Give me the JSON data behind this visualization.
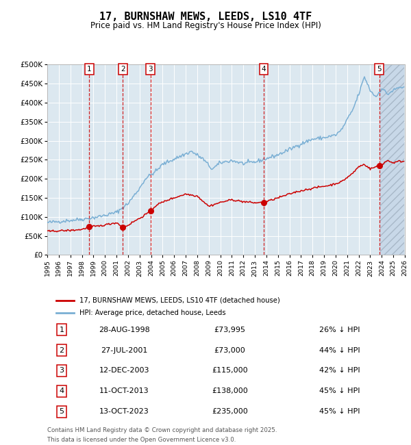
{
  "title": "17, BURNSHAW MEWS, LEEDS, LS10 4TF",
  "subtitle": "Price paid vs. HM Land Registry's House Price Index (HPI)",
  "hpi_label": "HPI: Average price, detached house, Leeds",
  "price_label": "17, BURNSHAW MEWS, LEEDS, LS10 4TF (detached house)",
  "footer1": "Contains HM Land Registry data © Crown copyright and database right 2025.",
  "footer2": "This data is licensed under the Open Government Licence v3.0.",
  "ylim": [
    0,
    500000
  ],
  "yticks": [
    0,
    50000,
    100000,
    150000,
    200000,
    250000,
    300000,
    350000,
    400000,
    450000,
    500000
  ],
  "ytick_labels": [
    "£0",
    "£50K",
    "£100K",
    "£150K",
    "£200K",
    "£250K",
    "£300K",
    "£350K",
    "£400K",
    "£450K",
    "£500K"
  ],
  "xmin_year": 1995,
  "xmax_year": 2026,
  "xtick_years": [
    1995,
    1996,
    1997,
    1998,
    1999,
    2000,
    2001,
    2002,
    2003,
    2004,
    2005,
    2006,
    2007,
    2008,
    2009,
    2010,
    2011,
    2012,
    2013,
    2014,
    2015,
    2016,
    2017,
    2018,
    2019,
    2020,
    2021,
    2022,
    2023,
    2024,
    2025,
    2026
  ],
  "bg_color": "#dce8f0",
  "grid_color": "#ffffff",
  "red_line_color": "#cc0000",
  "blue_line_color": "#7aafd4",
  "vline_color": "#cc0000",
  "hatch_after": 2023.78,
  "purchases": [
    {
      "num": 1,
      "year": 1998.65,
      "price": 73995,
      "pct": "26%",
      "label": "28-AUG-1998",
      "price_str": "£73,995"
    },
    {
      "num": 2,
      "year": 2001.56,
      "price": 73000,
      "pct": "44%",
      "label": "27-JUL-2001",
      "price_str": "£73,000"
    },
    {
      "num": 3,
      "year": 2003.94,
      "price": 115000,
      "pct": "42%",
      "label": "12-DEC-2003",
      "price_str": "£115,000"
    },
    {
      "num": 4,
      "year": 2013.78,
      "price": 138000,
      "pct": "45%",
      "label": "11-OCT-2013",
      "price_str": "£138,000"
    },
    {
      "num": 5,
      "year": 2023.78,
      "price": 235000,
      "pct": "45%",
      "label": "13-OCT-2023",
      "price_str": "£235,000"
    }
  ]
}
